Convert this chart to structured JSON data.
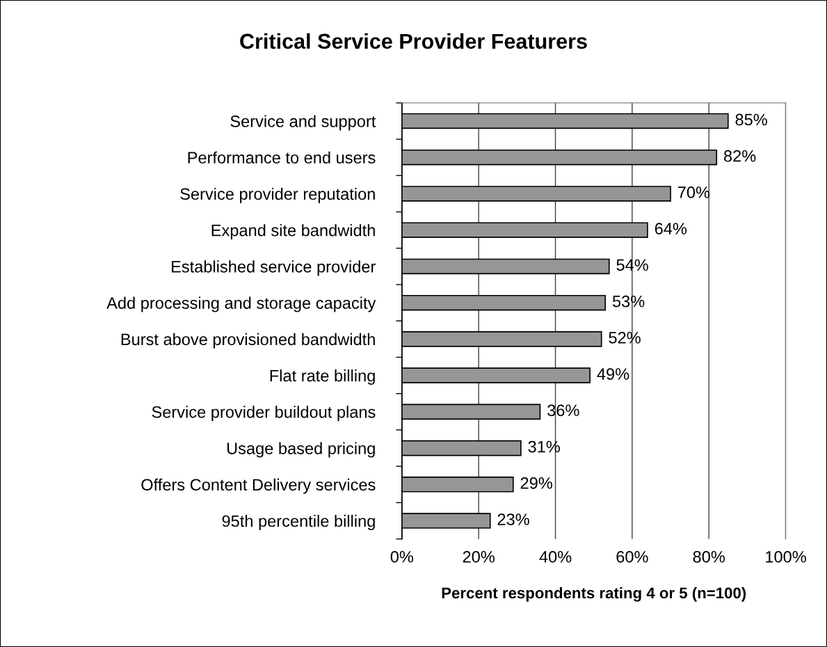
{
  "chart_data": {
    "type": "bar",
    "orientation": "horizontal",
    "title": "Critical Service Provider Featurers",
    "xlabel": "Percent respondents rating 4 or 5 (n=100)",
    "categories": [
      "Service and support",
      "Performance to end users",
      "Service provider reputation",
      "Expand site bandwidth",
      "Established service provider",
      "Add processing and storage capacity",
      "Burst above provisioned bandwidth",
      "Flat rate billing",
      "Service provider buildout plans",
      "Usage based pricing",
      "Offers Content Delivery services",
      "95th percentile billing"
    ],
    "values": [
      85,
      82,
      70,
      64,
      54,
      53,
      52,
      49,
      36,
      31,
      29,
      23
    ],
    "value_labels": [
      "85%",
      "82%",
      "70%",
      "64%",
      "54%",
      "53%",
      "52%",
      "49%",
      "36%",
      "31%",
      "29%",
      "23%"
    ],
    "color": "#969696",
    "xlim": [
      0,
      100
    ],
    "xticks": [
      {
        "value": 0,
        "label": "0%"
      },
      {
        "value": 20,
        "label": "20%"
      },
      {
        "value": 40,
        "label": "40%"
      },
      {
        "value": 60,
        "label": "60%"
      },
      {
        "value": 80,
        "label": "80%"
      },
      {
        "value": 100,
        "label": "100%"
      }
    ],
    "grid": "x",
    "legend": false
  }
}
